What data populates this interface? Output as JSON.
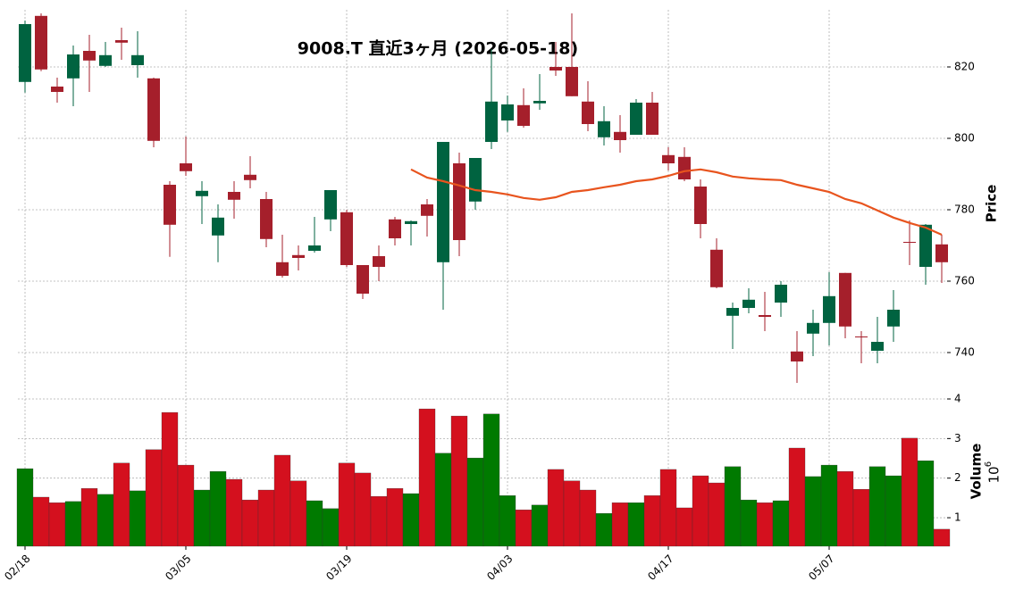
{
  "chart_data": {
    "type": "candlestick",
    "title": "9008.T  直近3ヶ月  (2026-05-18)",
    "categories": [
      "02/18",
      null,
      null,
      null,
      null,
      null,
      null,
      null,
      null,
      null,
      "03/05",
      null,
      null,
      null,
      null,
      null,
      null,
      null,
      null,
      null,
      "03/19",
      null,
      null,
      null,
      null,
      null,
      null,
      null,
      null,
      null,
      "04/03",
      null,
      null,
      null,
      null,
      null,
      null,
      null,
      null,
      null,
      "04/17",
      null,
      null,
      null,
      null,
      null,
      null,
      null,
      null,
      null,
      "05/07",
      null,
      null,
      null,
      null,
      null,
      null,
      null
    ],
    "open": [
      815.8,
      834.3,
      814.5,
      816.8,
      824.5,
      820.3,
      827.5,
      820.5,
      816.8,
      787,
      793,
      783.8,
      772.8,
      785,
      789.8,
      783,
      765.3,
      767.3,
      768.5,
      777.3,
      779.3,
      764.5,
      767,
      777.3,
      776,
      781.5,
      765.3,
      793,
      782.3,
      799,
      805,
      809.3,
      809.8,
      820,
      820,
      810.3,
      800.3,
      801.8,
      801,
      810,
      795.3,
      794.8,
      786.5,
      768.8,
      750.3,
      752.5,
      750.5,
      754,
      740.3,
      745.3,
      748.3,
      762.3,
      744.5,
      740.5,
      747.3,
      771,
      764,
      770.3
    ],
    "high": [
      833,
      835,
      817,
      826,
      829,
      827,
      831,
      830,
      817,
      788,
      800.5,
      788,
      781.5,
      788,
      795,
      785,
      773,
      770,
      778,
      785.5,
      780,
      764.5,
      770,
      778,
      777,
      783,
      799,
      796,
      794.5,
      825,
      812,
      814,
      818,
      827,
      835,
      816,
      809,
      806.5,
      811,
      813,
      797.5,
      797.5,
      788.5,
      772,
      754,
      758,
      757,
      760,
      746,
      752,
      762.5,
      762.3,
      746,
      750,
      757.5,
      777,
      776,
      773
    ],
    "low": [
      812.8,
      818.8,
      810,
      809,
      813,
      820,
      822,
      817,
      797.5,
      766.8,
      789.5,
      776,
      765.3,
      777.5,
      786,
      769.5,
      761,
      763,
      768,
      774,
      764,
      755,
      760,
      770,
      770,
      772.5,
      752,
      767,
      780,
      797,
      801.8,
      803,
      808,
      817.5,
      811.8,
      802,
      798,
      796,
      801,
      801,
      791,
      788,
      772,
      758,
      741,
      751,
      746,
      750,
      731.5,
      739,
      742,
      744,
      737,
      737,
      743,
      764.5,
      759,
      759.5
    ],
    "close": [
      832,
      819.3,
      813,
      823.5,
      821.8,
      823.3,
      826.8,
      823.3,
      799.3,
      775.8,
      790.8,
      785.3,
      777.8,
      782.8,
      788.3,
      771.8,
      761.5,
      766.5,
      770,
      785.5,
      764.5,
      756.5,
      764,
      772,
      776.8,
      778.3,
      799,
      771.5,
      794.5,
      810.3,
      809.5,
      803.5,
      810.5,
      819,
      811.8,
      804,
      804.8,
      799.5,
      810,
      801,
      793,
      788.5,
      776,
      758.3,
      752.5,
      754.8,
      750,
      759,
      737.5,
      748.3,
      755.8,
      747.3,
      744.3,
      743,
      752,
      770.8,
      775.8,
      765.3
    ],
    "up_color": "#006340",
    "down_color": "#a51f2b",
    "ma": {
      "color": "#e8541e",
      "values": [
        null,
        null,
        null,
        null,
        null,
        null,
        null,
        null,
        null,
        null,
        null,
        null,
        null,
        null,
        null,
        null,
        null,
        null,
        null,
        null,
        null,
        null,
        null,
        null,
        791.3,
        789,
        788,
        786.8,
        785.5,
        785,
        784.3,
        783.3,
        782.8,
        783.5,
        785,
        785.5,
        786.3,
        787,
        788,
        788.5,
        789.5,
        790.8,
        791.3,
        790.5,
        789.3,
        788.8,
        788.5,
        788.3,
        787,
        786,
        785,
        783,
        781.8,
        779.8,
        777.8,
        776.3,
        775,
        773
      ]
    },
    "volume": {
      "up_color": "#007a00",
      "down_color": "#d4101e",
      "values": [
        2.24,
        1.52,
        1.38,
        1.41,
        1.74,
        1.59,
        2.38,
        1.68,
        2.72,
        3.66,
        2.33,
        1.7,
        2.17,
        1.97,
        1.45,
        1.7,
        2.58,
        1.93,
        1.43,
        1.23,
        2.38,
        2.13,
        1.54,
        1.74,
        1.61,
        3.75,
        2.63,
        3.57,
        2.51,
        3.62,
        1.56,
        1.2,
        1.32,
        2.22,
        1.93,
        1.7,
        1.11,
        1.38,
        1.38,
        1.56,
        2.22,
        1.25,
        2.06,
        1.88,
        2.29,
        1.45,
        1.38,
        1.43,
        2.76,
        2.04,
        2.33,
        2.17,
        1.72,
        2.29,
        2.06,
        3.01,
        2.44,
        0.71
      ]
    },
    "ylabel": "Price",
    "y2label": "Volume",
    "y2_scale": {
      "base": "10",
      "exponent": "6"
    },
    "ylim": [
      728,
      836
    ],
    "yticks": [
      740,
      760,
      780,
      800,
      820
    ],
    "y2lim": [
      0.28,
      4
    ],
    "y2ticks": [
      1,
      2,
      3,
      4
    ],
    "grid": true
  }
}
